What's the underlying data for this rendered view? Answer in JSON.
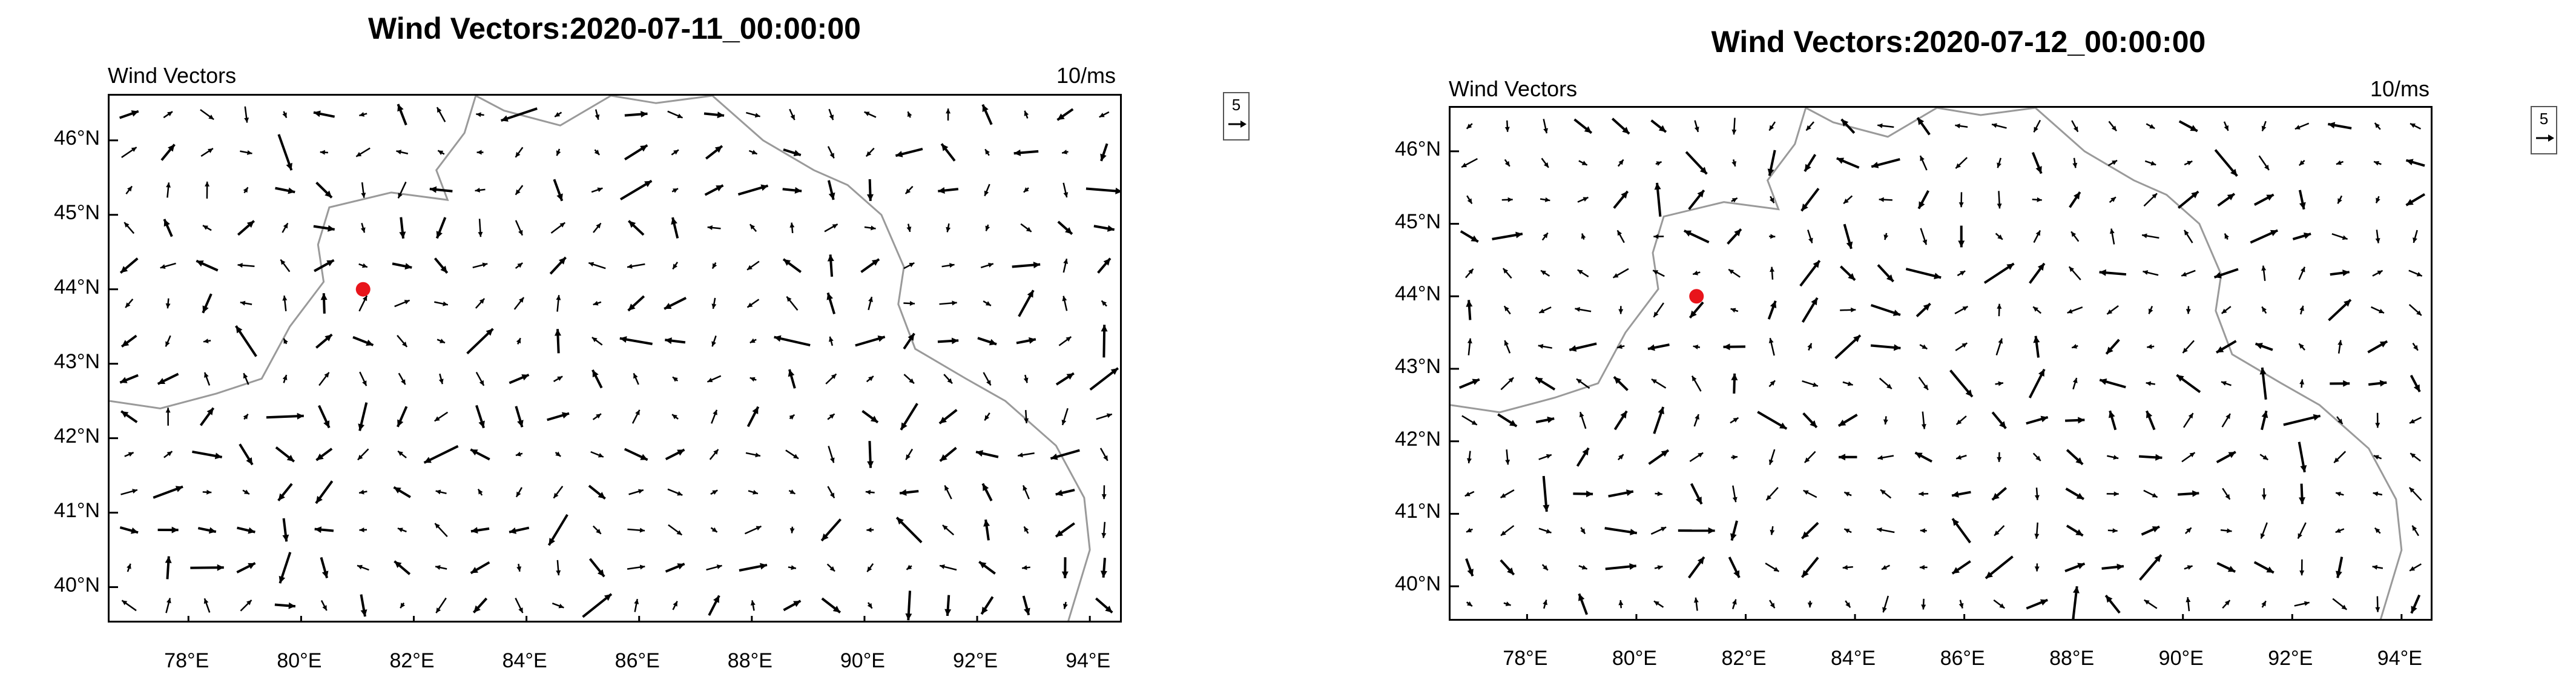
{
  "colors": {
    "vector": "#000000",
    "boundary": "#9a9a9a",
    "marker": "#e8141b"
  },
  "panels": [
    {
      "id": "p1",
      "title": "Wind Vectors:2020-07-11_00:00:00",
      "subtitle_left": "Wind Vectors",
      "subtitle_right": "10/ms",
      "ref_value": "5",
      "lon_ticks": [
        "78°E",
        "80°E",
        "82°E",
        "84°E",
        "86°E",
        "88°E",
        "90°E",
        "92°E",
        "94°E"
      ],
      "lat_ticks": [
        "46°N",
        "45°N",
        "44°N",
        "43°N",
        "42°N",
        "41°N",
        "40°N"
      ],
      "x_range": [
        76.6,
        94.6
      ],
      "y_range": [
        39.5,
        46.6
      ],
      "marker": {
        "lon": 81.1,
        "lat": 44.0
      },
      "seed": 17
    },
    {
      "id": "p2",
      "title": "Wind Vectors:2020-07-12_00:00:00",
      "subtitle_left": "Wind Vectors",
      "subtitle_right": "10/ms",
      "ref_value": "5",
      "lon_ticks": [
        "78°E",
        "80°E",
        "82°E",
        "84°E",
        "86°E",
        "88°E",
        "90°E",
        "92°E",
        "94°E"
      ],
      "lat_ticks": [
        "46°N",
        "45°N",
        "44°N",
        "43°N",
        "42°N",
        "41°N",
        "40°N"
      ],
      "x_range": [
        76.6,
        94.6
      ],
      "y_range": [
        39.5,
        46.6
      ],
      "marker": {
        "lon": 81.1,
        "lat": 44.0
      },
      "seed": 53
    }
  ]
}
